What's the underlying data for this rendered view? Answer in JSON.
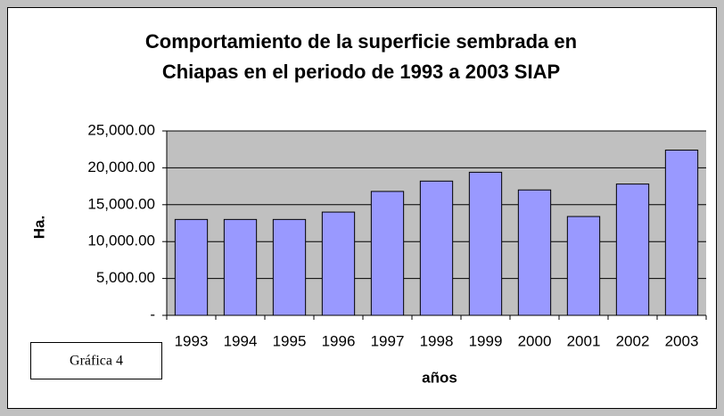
{
  "chart_data": {
    "type": "bar",
    "title": [
      "Comportamiento de la superficie sembrada en",
      "Chiapas en el periodo de 1993 a 2003 SIAP"
    ],
    "x_label": "años",
    "y_label": "Ha.",
    "annotation": "Gráfica 4",
    "categories": [
      "1993",
      "1994",
      "1995",
      "1996",
      "1997",
      "1998",
      "1999",
      "2000",
      "2001",
      "2002",
      "2003"
    ],
    "values": [
      13000,
      13000,
      13000,
      14000,
      16800,
      18200,
      19400,
      17000,
      13400,
      17800,
      22400
    ],
    "color": "#9999ff",
    "ylim": [
      0,
      25000
    ],
    "yticks": [
      {
        "value": 0,
        "label": "-"
      },
      {
        "value": 5000,
        "label": "5,000.00"
      },
      {
        "value": 10000,
        "label": "10,000.00"
      },
      {
        "value": 15000,
        "label": "15,000.00"
      },
      {
        "value": 20000,
        "label": "20,000.00"
      },
      {
        "value": 25000,
        "label": "25,000.00"
      }
    ],
    "grid": true
  }
}
